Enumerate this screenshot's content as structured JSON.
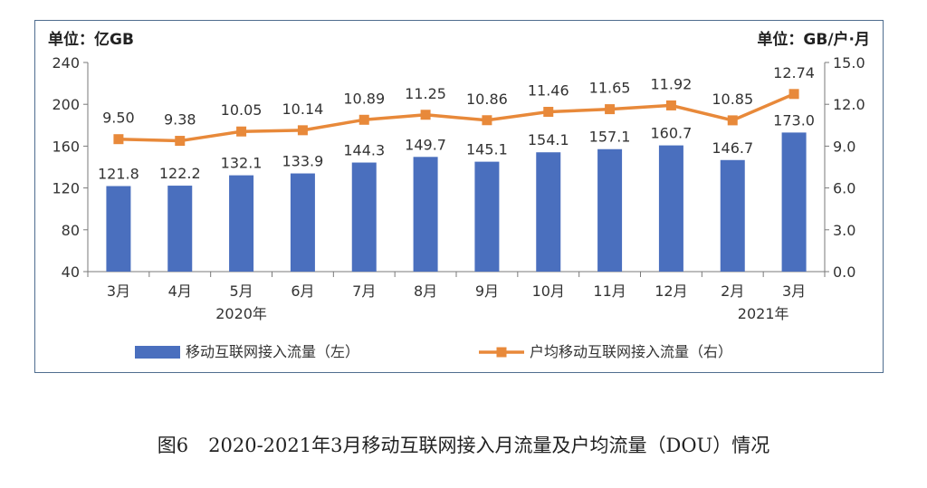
{
  "chart_data": {
    "type": "bar+line",
    "left_unit": "单位：亿GB",
    "right_unit": "单位：GB/户·月",
    "categories": [
      "3月",
      "4月",
      "5月",
      "6月",
      "7月",
      "8月",
      "9月",
      "10月",
      "11月",
      "12月",
      "2月",
      "3月"
    ],
    "year_labels": [
      {
        "label": "2020年",
        "category_index": 2
      },
      {
        "label": "2021年",
        "category_index": 10.5
      }
    ],
    "left_axis": {
      "min": 40,
      "max": 240,
      "ticks": [
        "40",
        "80",
        "120",
        "160",
        "200",
        "240"
      ],
      "tick_values": [
        40,
        80,
        120,
        160,
        200,
        240
      ]
    },
    "right_axis": {
      "min": 0,
      "max": 15,
      "ticks": [
        "0.0",
        "3.0",
        "6.0",
        "9.0",
        "12.0",
        "15.0"
      ],
      "tick_values": [
        0,
        3,
        6,
        9,
        12,
        15
      ]
    },
    "series": [
      {
        "name": "移动互联网接入流量（左）",
        "type": "bar",
        "axis": "left",
        "color": "#4a6fbe",
        "values": [
          121.8,
          122.2,
          132.1,
          133.9,
          144.3,
          149.7,
          145.1,
          154.1,
          157.1,
          160.7,
          146.7,
          173.0
        ],
        "labels": [
          "121.8",
          "122.2",
          "132.1",
          "133.9",
          "144.3",
          "149.7",
          "145.1",
          "154.1",
          "157.1",
          "160.7",
          "146.7",
          "173.0"
        ]
      },
      {
        "name": "户均移动互联网接入流量（右）",
        "type": "line",
        "axis": "right",
        "color": "#e8893a",
        "values": [
          9.5,
          9.38,
          10.05,
          10.14,
          10.89,
          11.25,
          10.86,
          11.46,
          11.65,
          11.92,
          10.85,
          12.74
        ],
        "labels": [
          "9.50",
          "9.38",
          "10.05",
          "10.14",
          "10.89",
          "11.25",
          "10.86",
          "11.46",
          "11.65",
          "11.92",
          "10.85",
          "12.74"
        ]
      }
    ],
    "legend_placement": "bottom",
    "grid": false
  },
  "caption": {
    "figure_no": "图6",
    "text": "2020-2021年3月移动互联网接入月流量及户均流量（DOU）情况"
  }
}
